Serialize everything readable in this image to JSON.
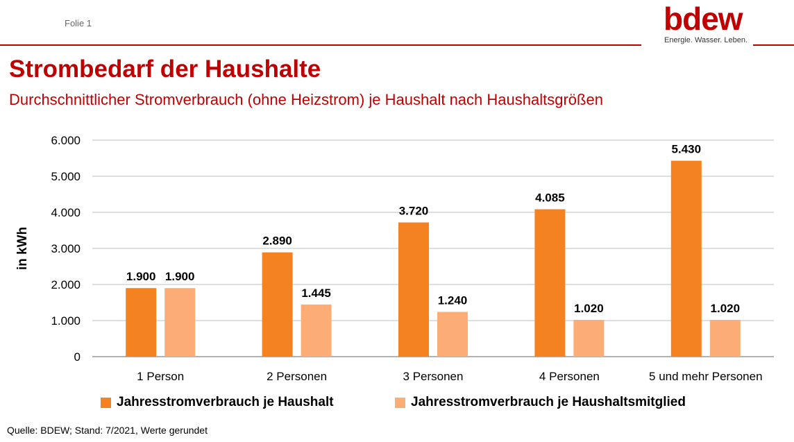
{
  "slide": {
    "label": "Folie 1"
  },
  "logo": {
    "word": "bdew",
    "tagline": "Energie. Wasser. Leben."
  },
  "header": {
    "title": "Strombedarf der Haushalte",
    "subtitle": "Durchschnittlicher Stromverbrauch (ohne Heizstrom) je Haushalt nach Haushaltsgrößen"
  },
  "colors": {
    "accent": "#c00000",
    "series1": "#f58220",
    "series2": "#fbad75",
    "grid": "#bfbfbf"
  },
  "chart_data": {
    "type": "bar",
    "ylabel": "in kWh",
    "xlabel": "",
    "ylim": [
      0,
      6000
    ],
    "yticks": [
      0,
      1000,
      2000,
      3000,
      4000,
      5000,
      6000
    ],
    "ytick_labels": [
      "0",
      "1.000",
      "2.000",
      "3.000",
      "4.000",
      "5.000",
      "6.000"
    ],
    "grid": true,
    "legend_position": "bottom",
    "categories": [
      "1 Person",
      "2 Personen",
      "3 Personen",
      "4 Personen",
      "5 und mehr Personen"
    ],
    "series": [
      {
        "name": "Jahresstromverbrauch je Haushalt",
        "values": [
          1900,
          2890,
          3720,
          4085,
          5430
        ],
        "labels": [
          "1.900",
          "2.890",
          "3.720",
          "4.085",
          "5.430"
        ]
      },
      {
        "name": "Jahresstromverbrauch je Haushaltsmitglied",
        "values": [
          1900,
          1445,
          1240,
          1020,
          1020
        ],
        "labels": [
          "1.900",
          "1.445",
          "1.240",
          "1.020",
          "1.020"
        ]
      }
    ]
  },
  "footer": {
    "source": "Quelle: BDEW; Stand: 7/2021, Werte gerundet"
  }
}
